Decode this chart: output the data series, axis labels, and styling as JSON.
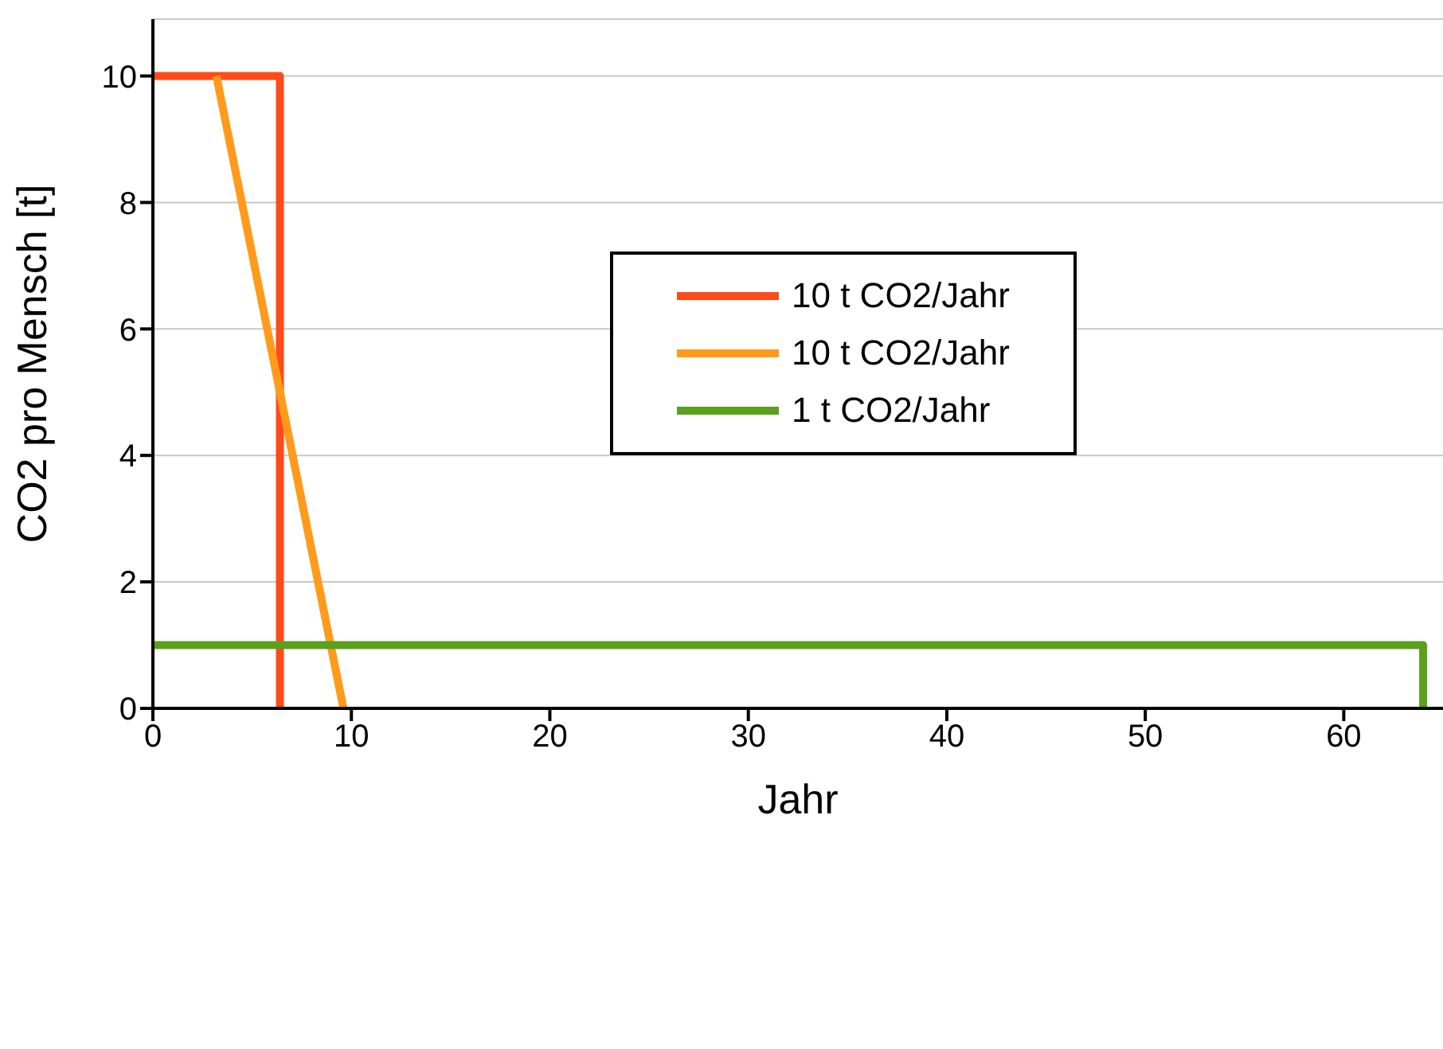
{
  "chart_data": {
    "type": "line",
    "xlabel": "Jahr",
    "ylabel": "CO2 pro Mensch [t]",
    "xlim": [
      0,
      65
    ],
    "xticks": [
      0,
      10,
      20,
      30,
      40,
      50,
      60
    ],
    "ylim": [
      0,
      10.9
    ],
    "yticks": [
      0,
      2,
      4,
      6,
      8,
      10
    ],
    "grid": "y",
    "legend": "top",
    "marker": "none",
    "line_style": "solid",
    "series": [
      {
        "name": "10 t CO2/Jahr",
        "color": "#ff4a1a",
        "x": [
          0,
          6.4,
          6.4
        ],
        "values": [
          10,
          10,
          0
        ]
      },
      {
        "name": "10 t CO2/Jahr",
        "color": "#ff9a1a",
        "x": [
          3.2,
          9.6
        ],
        "values": [
          10,
          0
        ]
      },
      {
        "name": "1 t CO2/Jahr",
        "color": "#5aa01e",
        "x": [
          0,
          64,
          64
        ],
        "values": [
          1,
          1,
          0
        ]
      }
    ]
  }
}
